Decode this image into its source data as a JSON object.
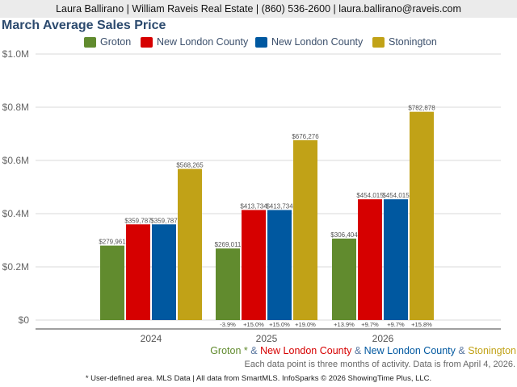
{
  "header": {
    "contact": "Laura Ballirano | William Raveis Real Estate | (860) 536-2600 | laura.ballirano@raveis.com"
  },
  "legend": [
    {
      "label": "Groton",
      "color": "#618b2e"
    },
    {
      "label": "New London County",
      "color": "#d60000"
    },
    {
      "label": "New London County",
      "color": "#0058a0"
    },
    {
      "label": "Stonington",
      "color": "#c1a217"
    }
  ],
  "chart_data": {
    "type": "bar",
    "title": "March Average Sales Price",
    "xlabel": "",
    "ylabel": "",
    "ylim": [
      0,
      1000000
    ],
    "yticks": [
      {
        "value": 0,
        "label": "$0"
      },
      {
        "value": 200000,
        "label": "$0.2M"
      },
      {
        "value": 400000,
        "label": "$0.4M"
      },
      {
        "value": 600000,
        "label": "$0.6M"
      },
      {
        "value": 800000,
        "label": "$0.8M"
      },
      {
        "value": 1000000,
        "label": "$1.0M"
      }
    ],
    "grid": true,
    "legend_position": "top",
    "categories": [
      "2024",
      "2025",
      "2026"
    ],
    "series": [
      {
        "name": "Groton",
        "color": "#618b2e",
        "values": [
          279961,
          269011,
          306404
        ],
        "labels": [
          "$279,961",
          "$269,011",
          "$306,404"
        ],
        "changes": [
          "",
          "-3.9%",
          "+13.9%"
        ]
      },
      {
        "name": "New London County",
        "color": "#d60000",
        "values": [
          359787,
          413734,
          454015
        ],
        "labels": [
          "$359,787",
          "$413,734",
          "$454,015"
        ],
        "changes": [
          "",
          "+15.0%",
          "+9.7%"
        ]
      },
      {
        "name": "New London County",
        "color": "#0058a0",
        "values": [
          359787,
          413734,
          454015
        ],
        "labels": [
          "$359,787",
          "$413,734",
          "$454,015"
        ],
        "changes": [
          "",
          "+15.0%",
          "+9.7%"
        ]
      },
      {
        "name": "Stonington",
        "color": "#c1a217",
        "values": [
          568265,
          676276,
          782878
        ],
        "labels": [
          "$568,265",
          "$676,276",
          "$782,878"
        ],
        "changes": [
          "",
          "+19.0%",
          "+15.8%"
        ]
      }
    ]
  },
  "footer": {
    "legend_parts": [
      {
        "text": "Groton *",
        "color": "#618b2e"
      },
      {
        "text": " & ",
        "color": "#5a77a0"
      },
      {
        "text": "New London County",
        "color": "#d60000"
      },
      {
        "text": " & ",
        "color": "#5a77a0"
      },
      {
        "text": "New London County",
        "color": "#0058a0"
      },
      {
        "text": " & ",
        "color": "#5a77a0"
      },
      {
        "text": "Stonington",
        "color": "#c1a217"
      }
    ],
    "note": "Each data point is three months of activity. Data is from April 4, 2026.",
    "source": "* User-defined area. MLS Data | All data from SmartMLS. InfoSparks © 2026 ShowingTime Plus, LLC."
  }
}
